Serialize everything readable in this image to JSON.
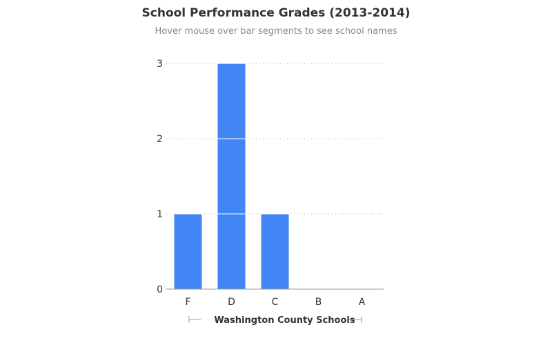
{
  "chart_data": {
    "type": "bar",
    "title": "School Performance Grades (2013-2014)",
    "subtitle": "Hover mouse over bar segments to see school names",
    "categories": [
      "F",
      "D",
      "C",
      "B",
      "A"
    ],
    "values": [
      1,
      3,
      1,
      0,
      0
    ],
    "segments": [
      [
        1
      ],
      [
        1,
        1,
        1
      ],
      [
        1
      ],
      [],
      []
    ],
    "xlabel": "Washington County Schools",
    "ylabel": "",
    "ylim": [
      0,
      3
    ],
    "yticks": [
      0,
      1,
      2,
      3
    ],
    "grid": true,
    "bar_color": "#4285f4",
    "grid_color": "#aaaaaa",
    "axis_color": "#999999"
  }
}
